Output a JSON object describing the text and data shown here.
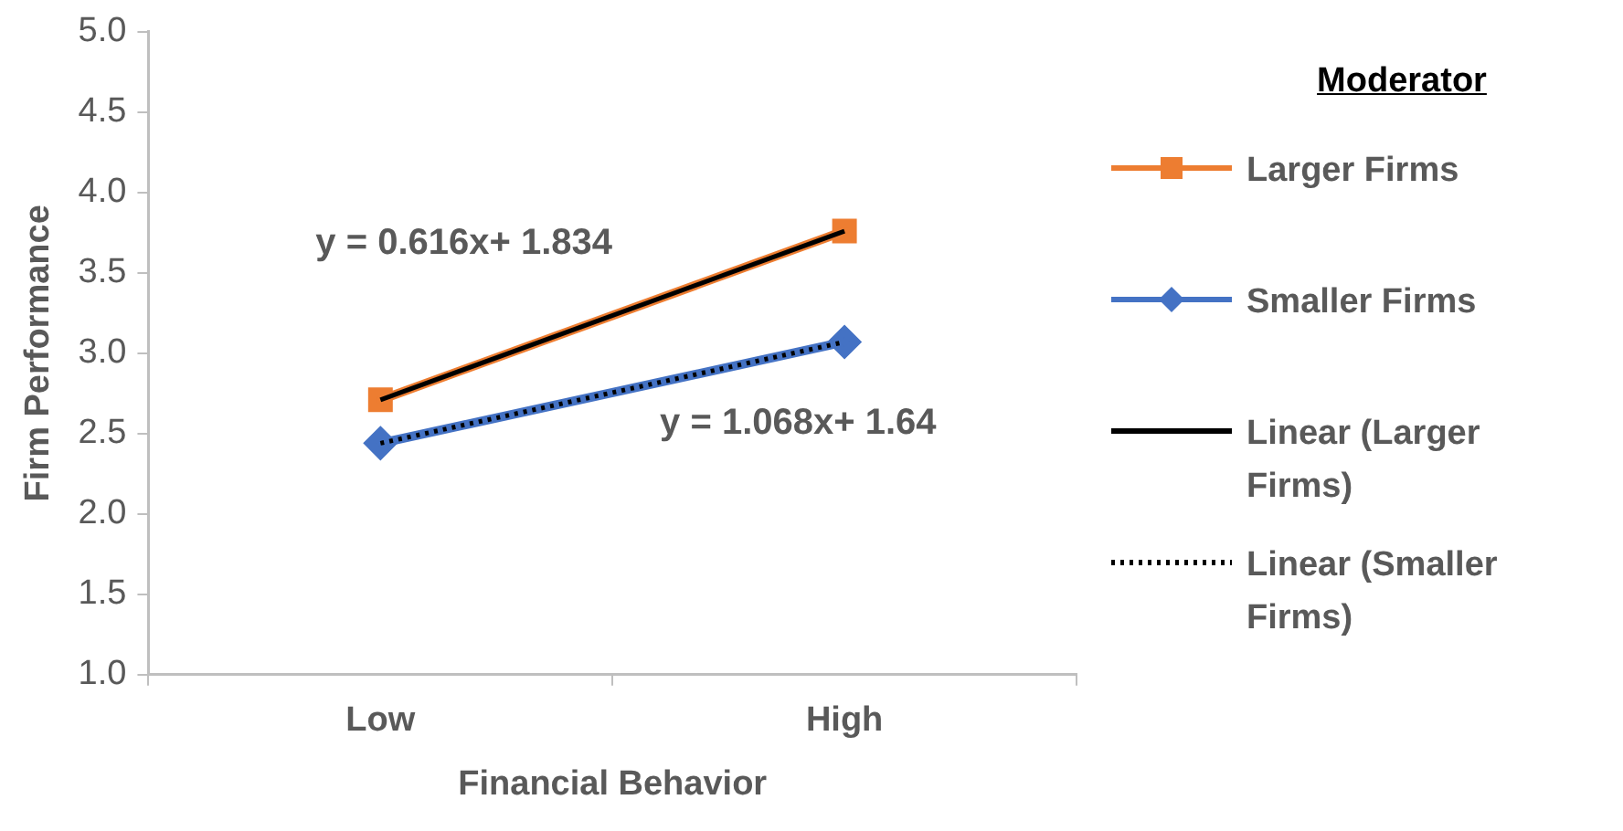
{
  "chart_data": {
    "type": "line",
    "xlabel": "Financial Behavior",
    "ylabel": "Firm Performance",
    "legend_title": "Moderator",
    "legend": "right",
    "grid": false,
    "categories": [
      "Low",
      "High"
    ],
    "ylim": [
      1.0,
      5.0
    ],
    "yticks": [
      {
        "value": 1,
        "label": "1.0"
      },
      {
        "value": 1.5,
        "label": "1.5"
      },
      {
        "value": 2,
        "label": "2.0"
      },
      {
        "value": 2.5,
        "label": "2.5"
      },
      {
        "value": 3,
        "label": "3.0"
      },
      {
        "value": 3.5,
        "label": "3.5"
      },
      {
        "value": 4,
        "label": "4.0"
      },
      {
        "value": 4.5,
        "label": "4.5"
      },
      {
        "value": 5,
        "label": "5.0"
      }
    ],
    "series": [
      {
        "name": "Larger Firms",
        "color": "#ed7d31",
        "values": [
          2.71,
          3.76
        ],
        "marker": "square",
        "line_style": "solid"
      },
      {
        "name": "Smaller Firms",
        "color": "#4472c4",
        "values": [
          2.44,
          3.07
        ],
        "marker": "diamond",
        "line_style": "solid"
      },
      {
        "name": "Linear (Larger Firms)",
        "color": "#000000",
        "values": [
          2.71,
          3.76
        ],
        "marker": "none",
        "line_style": "solid"
      },
      {
        "name": "Linear (Smaller Firms)",
        "color": "#000000",
        "values": [
          2.44,
          3.07
        ],
        "marker": "none",
        "line_style": "dotted"
      }
    ],
    "annotations": [
      "y = 0.616x+ 1.834",
      "y = 1.068x+ 1.64"
    ]
  }
}
